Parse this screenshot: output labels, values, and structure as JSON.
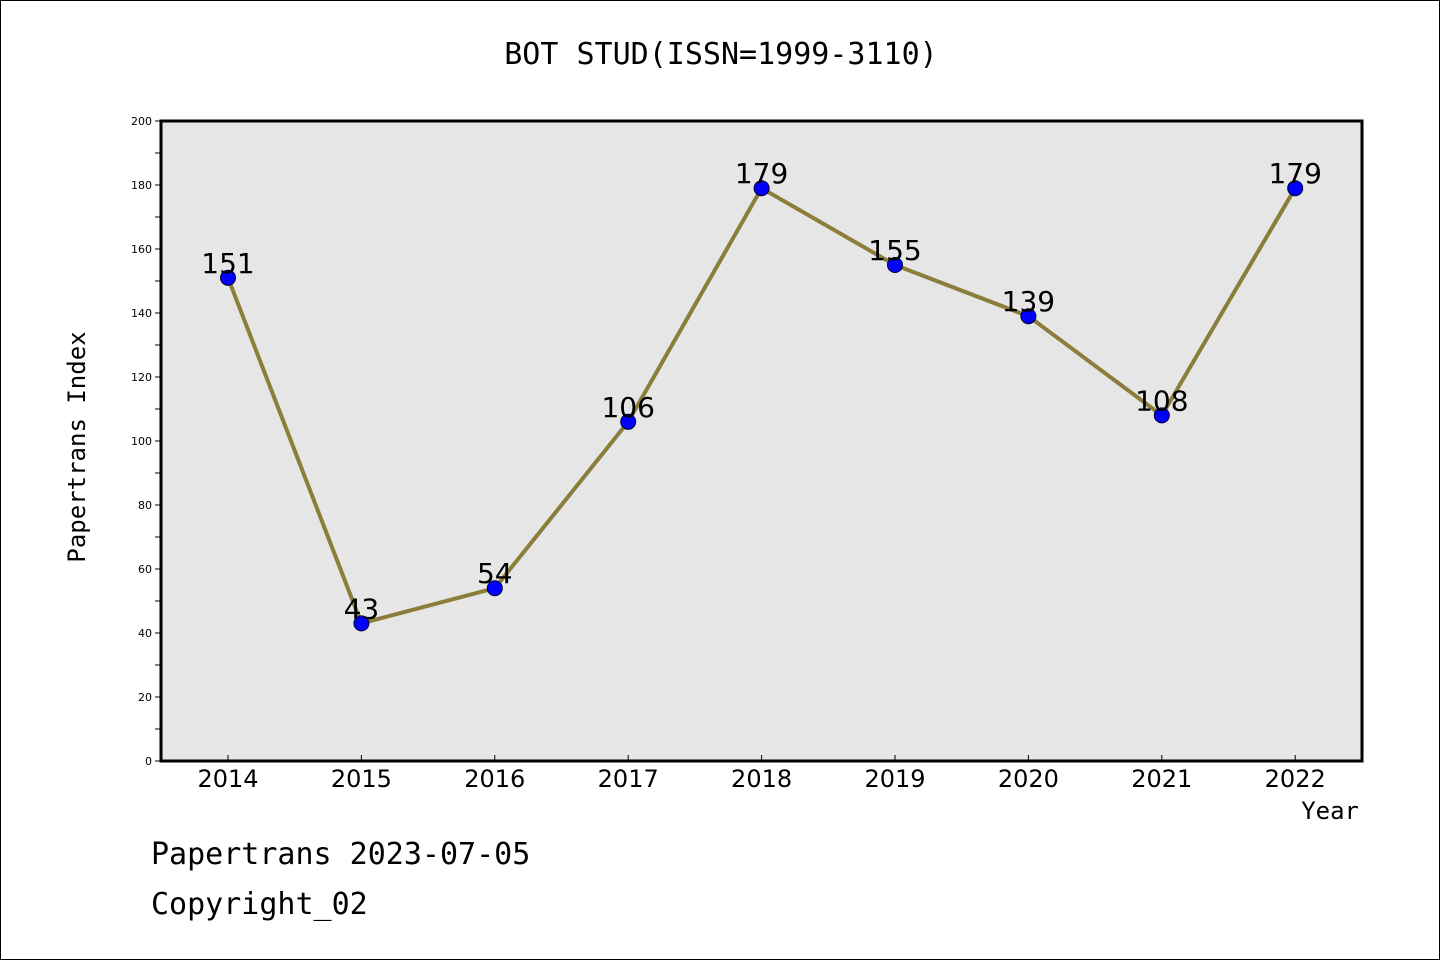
{
  "chart_data": {
    "type": "line",
    "title": "BOT STUD(ISSN=1999-3110)",
    "xlabel": "Year",
    "ylabel": "Papertrans Index",
    "categories": [
      "2014",
      "2015",
      "2016",
      "2017",
      "2018",
      "2019",
      "2020",
      "2021",
      "2022"
    ],
    "series": [
      {
        "values": [
          151,
          43,
          54,
          106,
          179,
          155,
          139,
          108,
          179
        ]
      }
    ],
    "ylim": [
      0,
      200
    ],
    "yticks": [
      0,
      20,
      40,
      60,
      80,
      100,
      120,
      140,
      160,
      180,
      200
    ],
    "grid": false,
    "data_labels": true,
    "colors": {
      "line": "#8b7d3a",
      "marker": "#0000ff",
      "plot_background": "#e6e6e6"
    }
  },
  "footer": {
    "date_line": "Papertrans 2023-07-05",
    "copyright_line": "Copyright_02"
  }
}
